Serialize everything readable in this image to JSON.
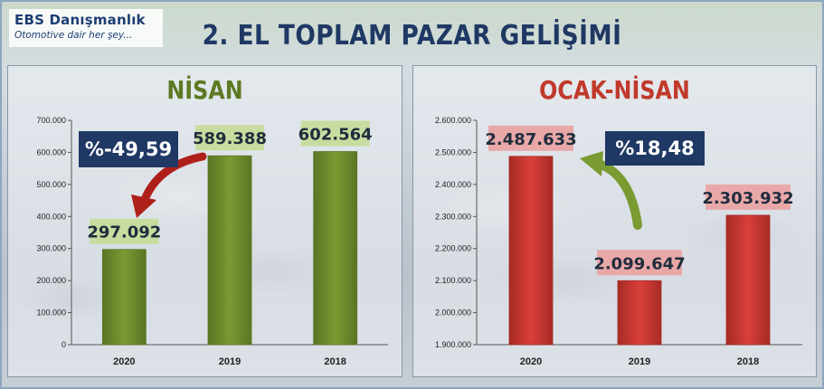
{
  "logo": {
    "name": "EBS Danışmanlık",
    "slogan": "Otomotive dair her şey..."
  },
  "title": "2. EL TOPLAM PAZAR  GELİŞİMİ",
  "colors": {
    "green_bar": "#7a9a32",
    "red_bar": "#d9403a",
    "navy": "#1f3864",
    "green_label_bg": "#c8dc9f",
    "red_label_bg": "#e9a8a8"
  },
  "chart_data": [
    {
      "type": "bar",
      "title": "NİSAN",
      "categories": [
        "2020",
        "2019",
        "2018"
      ],
      "values": [
        297092,
        589388,
        602564
      ],
      "value_labels": [
        "297.092",
        "589.388",
        "602.564"
      ],
      "ylim": [
        0,
        700000
      ],
      "yticks": [
        "0",
        "100.000",
        "200.000",
        "300.000",
        "400.000",
        "500.000",
        "600.000",
        "700.000"
      ],
      "ytick_values": [
        0,
        100000,
        200000,
        300000,
        400000,
        500000,
        600000,
        700000
      ],
      "change_label": "%-49,59",
      "grid": false
    },
    {
      "type": "bar",
      "title": "OCAK-NİSAN",
      "categories": [
        "2020",
        "2019",
        "2018"
      ],
      "values": [
        2487633,
        2099647,
        2303932
      ],
      "value_labels": [
        "2.487.633",
        "2.099.647",
        "2.303.932"
      ],
      "ylim": [
        1900000,
        2600000
      ],
      "yticks": [
        "1.900.000",
        "2.000.000",
        "2.100.000",
        "2.200.000",
        "2.300.000",
        "2.400.000",
        "2.500.000",
        "2.600.000"
      ],
      "ytick_values": [
        1900000,
        2000000,
        2100000,
        2200000,
        2300000,
        2400000,
        2500000,
        2600000
      ],
      "change_label": "%18,48",
      "grid": false
    }
  ]
}
